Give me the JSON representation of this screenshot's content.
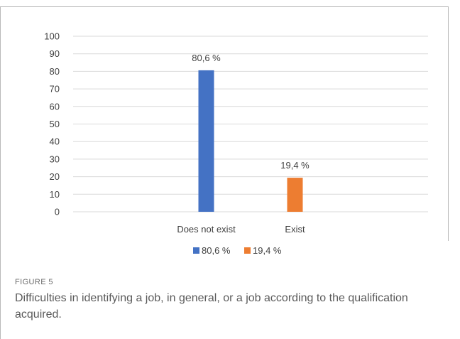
{
  "figure": {
    "label": "FIGURE 5",
    "caption": "Difficulties in identifying a job, in general, or a job according to the qualification acquired."
  },
  "chart_data": {
    "type": "bar",
    "categories": [
      "Does not exist",
      "Exist"
    ],
    "values": [
      80.6,
      19.4
    ],
    "data_labels": [
      "80,6 %",
      "19,4 %"
    ],
    "legend_labels": [
      "80,6 %",
      "19,4 %"
    ],
    "colors": [
      "#4472c4",
      "#ed7d31"
    ],
    "ylim": [
      0,
      100
    ],
    "yticks": [
      0,
      10,
      20,
      30,
      40,
      50,
      60,
      70,
      80,
      90,
      100
    ],
    "grid": true,
    "legend_position": "bottom",
    "title": "",
    "xlabel": "",
    "ylabel": ""
  }
}
